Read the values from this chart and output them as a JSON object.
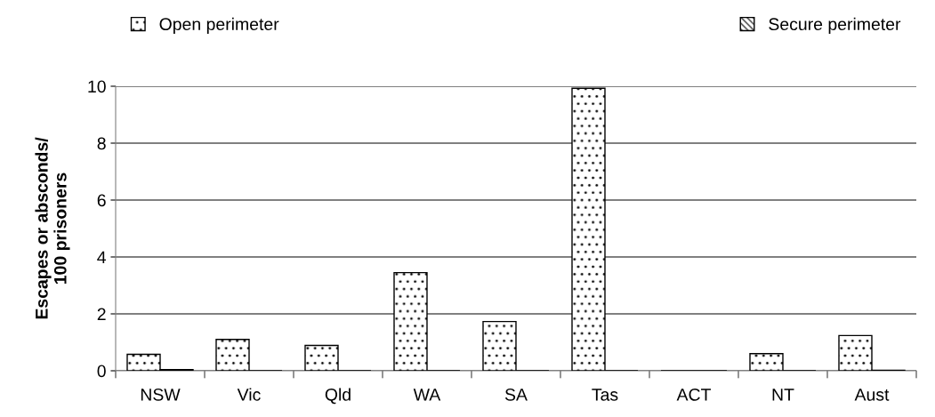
{
  "chart_data": {
    "type": "bar",
    "ylabel": "Escapes or absconds/\n100 prisoners",
    "categories": [
      "NSW",
      "Vic",
      "Qld",
      "WA",
      "SA",
      "Tas",
      "ACT",
      "NT",
      "Aust"
    ],
    "series": [
      {
        "name": "Open perimeter",
        "color": "#000000",
        "values": [
          0.58,
          1.1,
          0.89,
          3.45,
          1.73,
          9.93,
          0,
          0.6,
          1.24
        ]
      },
      {
        "name": "Secure perimeter",
        "color": "#000000",
        "values": [
          0.04,
          0,
          0,
          0,
          0,
          0,
          0,
          0,
          0.02
        ]
      }
    ],
    "ylim": [
      0,
      10
    ],
    "yticks": [
      0,
      2,
      4,
      6,
      8,
      10
    ],
    "grid": "y",
    "legend": "top"
  }
}
